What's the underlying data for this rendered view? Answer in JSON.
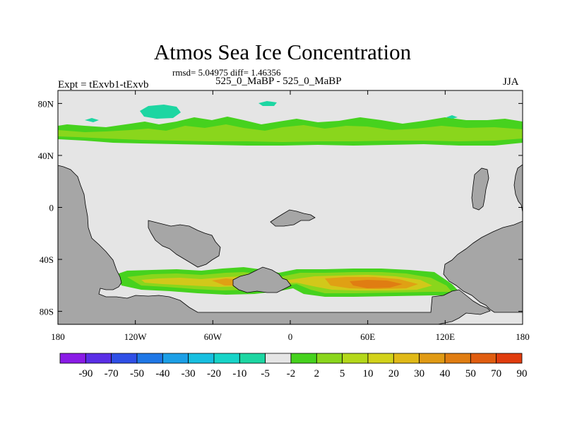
{
  "chart_data": {
    "type": "heatmap",
    "title": "Atmos Sea Ice Concentration",
    "stats_text": "rmsd= 5.04975 diff= 1.46356",
    "subtitle": "525_0_MaBP - 525_0_MaBP",
    "left_label": "Expt = tExvb1-tExvb",
    "season": "JJA",
    "x_ticks": [
      "180",
      "120W",
      "60W",
      "0",
      "60E",
      "120E",
      "180"
    ],
    "y_ticks": [
      "80N",
      "40N",
      "0",
      "40S",
      "80S"
    ],
    "xlim": [
      -180,
      180
    ],
    "ylim": [
      -90,
      90
    ],
    "colorbar": {
      "labels": [
        "-90",
        "-70",
        "-50",
        "-40",
        "-30",
        "-20",
        "-10",
        "-5",
        "-2",
        "2",
        "5",
        "10",
        "20",
        "30",
        "40",
        "50",
        "70",
        "90"
      ],
      "colors": [
        "#8a1be6",
        "#5a2ee6",
        "#2f4fe6",
        "#1f77e6",
        "#1c9fe6",
        "#17bfe0",
        "#17d4c8",
        "#1dd6a2",
        "#e5e5e5",
        "#46d21e",
        "#8ad61c",
        "#b4d81a",
        "#d2d21a",
        "#e0b917",
        "#e09a14",
        "#e07d12",
        "#e05d10",
        "#e03c0e"
      ]
    },
    "colors": {
      "ocean": "#e5e5e5",
      "land": "#a6a6a6",
      "band_low": "#46d21e",
      "band_mid": "#8ad61c",
      "band_high": "#d2c81a",
      "band_max": "#e0a014",
      "band_peak": "#e07d12",
      "negative": "#1dd6a2",
      "negative_strong": "#17c9bb"
    }
  }
}
